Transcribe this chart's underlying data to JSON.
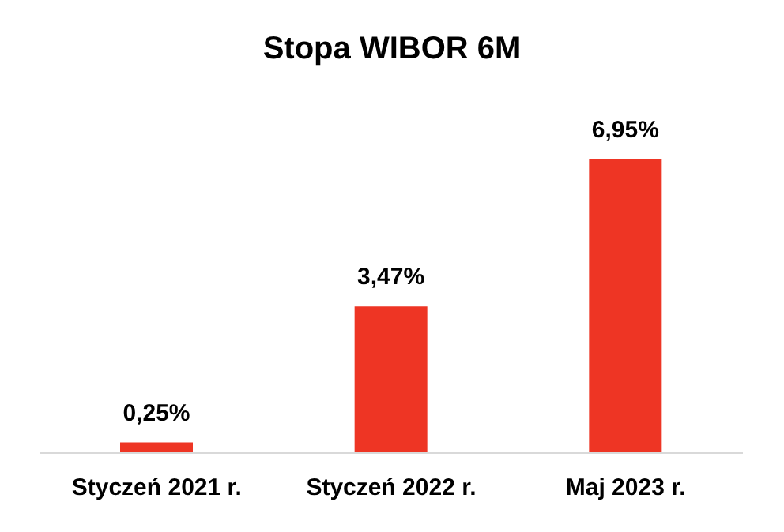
{
  "chart_data": {
    "type": "bar",
    "title": "Stopa WIBOR 6M",
    "categories": [
      "Styczeń 2021 r.",
      "Styczeń 2022 r.",
      "Maj 2023 r."
    ],
    "values": [
      0.25,
      3.47,
      6.95
    ],
    "value_labels": [
      "0,25%",
      "3,47%",
      "6,95%"
    ],
    "color": "#ee3524"
  }
}
